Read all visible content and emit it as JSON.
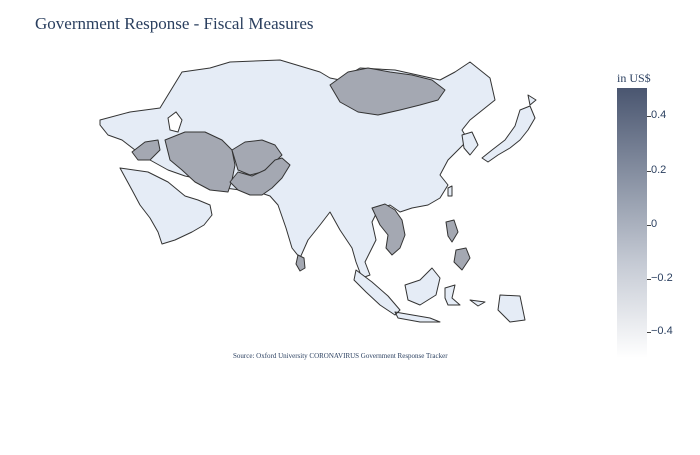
{
  "title": "Government Response - Fiscal Measures",
  "source": "Source:  Oxford University CORONAVIRUS Government Response Tracker",
  "colorbar": {
    "title": "in US$",
    "range": [
      -0.5,
      0.5
    ],
    "ticks": [
      "0.4",
      "0.2",
      "0",
      "−0.2",
      "−0.4"
    ],
    "colors": {
      "high": "#4a5670",
      "mid": "#a4a8b2",
      "low": "#ffffff",
      "base": "#e5ecf6"
    }
  },
  "map": {
    "region": "Asia",
    "regions": [
      {
        "name": "mainland-asia",
        "level": "base"
      },
      {
        "name": "arabian-peninsula",
        "level": "base"
      },
      {
        "name": "mongolia",
        "level": "mid"
      },
      {
        "name": "iran",
        "level": "mid"
      },
      {
        "name": "afghanistan",
        "level": "mid"
      },
      {
        "name": "pakistan",
        "level": "mid"
      },
      {
        "name": "syria-iraq-area",
        "level": "mid"
      },
      {
        "name": "laos-vietnam-cambodia",
        "level": "mid"
      },
      {
        "name": "philippines",
        "level": "mid"
      },
      {
        "name": "sri-lanka",
        "level": "mid"
      },
      {
        "name": "japan",
        "level": "base"
      },
      {
        "name": "indonesia",
        "level": "base"
      }
    ]
  }
}
